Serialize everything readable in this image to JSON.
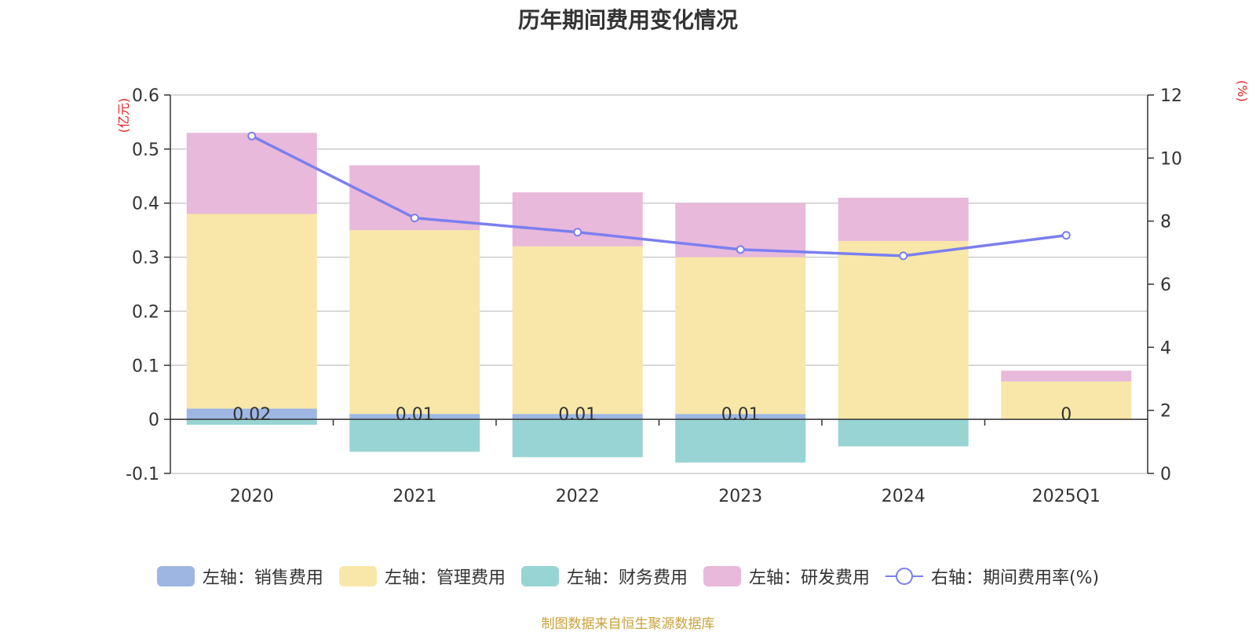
{
  "chart_data": {
    "type": "bar",
    "title": "历年期间费用变化情况",
    "categories": [
      "2020",
      "2021",
      "2022",
      "2023",
      "2024",
      "2025Q1"
    ],
    "y_left": {
      "unit": "(亿元)",
      "min": -0.1,
      "max": 0.6,
      "step": 0.1,
      "ticks": [
        "-0.1",
        "0",
        "0.1",
        "0.2",
        "0.3",
        "0.4",
        "0.5",
        "0.6"
      ]
    },
    "y_right": {
      "unit": "(%)",
      "min": 0,
      "max": 12,
      "step": 2,
      "ticks": [
        "0",
        "2",
        "4",
        "6",
        "8",
        "10",
        "12"
      ]
    },
    "stacked": true,
    "grid": true,
    "series": [
      {
        "name": "左轴：销售费用",
        "axis": "left",
        "color": "#9db6e2",
        "values": [
          0.02,
          0.01,
          0.01,
          0.01,
          0,
          0
        ]
      },
      {
        "name": "左轴：管理费用",
        "axis": "left",
        "color": "#f8e7a8",
        "values": [
          0.36,
          0.34,
          0.31,
          0.29,
          0.33,
          0.07
        ]
      },
      {
        "name": "左轴：财务费用",
        "axis": "left",
        "color": "#98d4d4",
        "values": [
          -0.01,
          -0.06,
          -0.07,
          -0.08,
          -0.05,
          0
        ]
      },
      {
        "name": "左轴：研发费用",
        "axis": "left",
        "color": "#e8b9da",
        "values": [
          0.15,
          0.12,
          0.1,
          0.1,
          0.08,
          0.02
        ]
      },
      {
        "name": "右轴：期间费用率(%)",
        "axis": "right",
        "type": "line",
        "color": "#7b7ff0",
        "values": [
          10.7,
          8.1,
          7.65,
          7.1,
          6.9,
          7.55
        ]
      }
    ],
    "data_labels": [
      "0.02",
      "0.01",
      "0.01",
      "0.01",
      "",
      "0"
    ],
    "legend_position": "bottom-center"
  },
  "source": "制图数据来自恒生聚源数据库"
}
